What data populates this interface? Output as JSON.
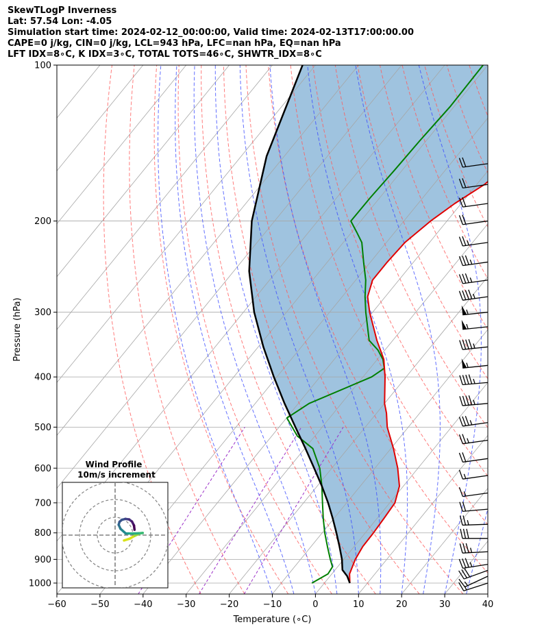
{
  "header": {
    "line1": "SkewTLogP Inverness",
    "line2": "Lat: 57.54   Lon: -4.05",
    "line3": "Simulation start time: 2024-02-12_00:00:00, Valid time: 2024-02-13T17:00:00.00",
    "line4": "CAPE=0 j/kg, CIN=0 j/kg, LCL=943 hPa, LFC=nan hPa, EQ=nan hPa",
    "line5": "LFT IDX=8∘C, K IDX=3∘C, TOTAL TOTS=46∘C, SHWTR_IDX=8∘C"
  },
  "colors": {
    "temperature": "#e00000",
    "dewpoint": "#007f00",
    "parcel": "#000000",
    "shade": "#9fc3df",
    "dry_adiabat": "#ff5a5a",
    "moist_adiabat": "#3b4bff",
    "mixing_ratio": "#9b30c8",
    "isotherm": "#a6a6a6"
  },
  "chart_data": {
    "type": "skewt",
    "title": "SkewTLogP Inverness",
    "xlabel": "Temperature (∘C)",
    "ylabel": "Pressure (hPa)",
    "xlim": [
      -60,
      40
    ],
    "ylim": [
      1050,
      100
    ],
    "x_ticks": [
      "−60",
      "−50",
      "−40",
      "−30",
      "−20",
      "−10",
      "0",
      "10",
      "20",
      "30",
      "40"
    ],
    "x_tick_values": [
      -60,
      -50,
      -40,
      -30,
      -20,
      -10,
      0,
      10,
      20,
      30,
      40
    ],
    "y_ticks": [
      "100",
      "200",
      "300",
      "400",
      "500",
      "600",
      "700",
      "800",
      "900",
      "1000"
    ],
    "y_tick_values": [
      100,
      200,
      300,
      400,
      500,
      600,
      700,
      800,
      900,
      1000
    ],
    "temperature": {
      "name": "Temperature",
      "points": [
        [
          1000,
          5.9
        ],
        [
          960,
          4.1
        ],
        [
          900,
          2.7
        ],
        [
          850,
          2.0
        ],
        [
          800,
          1.9
        ],
        [
          750,
          1.6
        ],
        [
          700,
          1.2
        ],
        [
          650,
          -0.9
        ],
        [
          600,
          -4.7
        ],
        [
          550,
          -9.4
        ],
        [
          500,
          -14.9
        ],
        [
          470,
          -17.7
        ],
        [
          450,
          -20.0
        ],
        [
          400,
          -24.9
        ],
        [
          370,
          -28.5
        ],
        [
          340,
          -33.7
        ],
        [
          300,
          -40.7
        ],
        [
          280,
          -44.1
        ],
        [
          260,
          -46.1
        ],
        [
          240,
          -46.1
        ],
        [
          220,
          -45.7
        ],
        [
          200,
          -43.8
        ],
        [
          185,
          -41.5
        ],
        [
          170,
          -38.2
        ],
        [
          150,
          -35.9
        ],
        [
          130,
          -35.7
        ],
        [
          115,
          -33.9
        ],
        [
          100,
          -32.0
        ]
      ]
    },
    "dewpoint": {
      "name": "Dewpoint",
      "points": [
        [
          1000,
          -2.9
        ],
        [
          960,
          -0.9
        ],
        [
          930,
          -1.2
        ],
        [
          900,
          -3.1
        ],
        [
          850,
          -6.2
        ],
        [
          800,
          -9.4
        ],
        [
          750,
          -12.5
        ],
        [
          700,
          -15.6
        ],
        [
          650,
          -18.9
        ],
        [
          600,
          -22.8
        ],
        [
          550,
          -28.1
        ],
        [
          520,
          -34.1
        ],
        [
          480,
          -39.9
        ],
        [
          450,
          -37.5
        ],
        [
          400,
          -28.0
        ],
        [
          385,
          -26.7
        ],
        [
          370,
          -28.7
        ],
        [
          355,
          -31.6
        ],
        [
          340,
          -35.5
        ],
        [
          300,
          -41.6
        ],
        [
          280,
          -44.7
        ],
        [
          260,
          -47.7
        ],
        [
          240,
          -51.6
        ],
        [
          220,
          -55.7
        ],
        [
          210,
          -58.9
        ],
        [
          200,
          -62.3
        ],
        [
          180,
          -62.2
        ],
        [
          160,
          -61.8
        ],
        [
          140,
          -61.5
        ],
        [
          120,
          -60.9
        ],
        [
          100,
          -61.1
        ]
      ]
    },
    "parcel": {
      "name": "Parcel profile",
      "points": [
        [
          1000,
          5.9
        ],
        [
          970,
          4.0
        ],
        [
          943,
          1.7
        ],
        [
          900,
          -0.4
        ],
        [
          850,
          -3.4
        ],
        [
          800,
          -6.7
        ],
        [
          750,
          -10.3
        ],
        [
          700,
          -14.3
        ],
        [
          650,
          -18.9
        ],
        [
          600,
          -24.1
        ],
        [
          550,
          -29.8
        ],
        [
          500,
          -36.2
        ],
        [
          450,
          -43.2
        ],
        [
          400,
          -50.7
        ],
        [
          350,
          -58.8
        ],
        [
          300,
          -67.5
        ],
        [
          250,
          -76.4
        ],
        [
          200,
          -85.3
        ],
        [
          150,
          -94.1
        ],
        [
          100,
          -103.0
        ]
      ]
    },
    "wind_barbs": [
      {
        "p": 1000,
        "dir": 252,
        "kt": 18
      },
      {
        "p": 970,
        "dir": 245,
        "kt": 19
      },
      {
        "p": 945,
        "dir": 250,
        "kt": 30
      },
      {
        "p": 920,
        "dir": 261,
        "kt": 36
      },
      {
        "p": 870,
        "dir": 267,
        "kt": 35
      },
      {
        "p": 820,
        "dir": 270,
        "kt": 30
      },
      {
        "p": 770,
        "dir": 268,
        "kt": 25
      },
      {
        "p": 720,
        "dir": 265,
        "kt": 20
      },
      {
        "p": 670,
        "dir": 262,
        "kt": 15
      },
      {
        "p": 620,
        "dir": 262,
        "kt": 15
      },
      {
        "p": 575,
        "dir": 262,
        "kt": 20
      },
      {
        "p": 530,
        "dir": 262,
        "kt": 25
      },
      {
        "p": 490,
        "dir": 262,
        "kt": 35
      },
      {
        "p": 450,
        "dir": 265,
        "kt": 45
      },
      {
        "p": 410,
        "dir": 265,
        "kt": 45
      },
      {
        "p": 380,
        "dir": 264,
        "kt": 55
      },
      {
        "p": 350,
        "dir": 264,
        "kt": 45
      },
      {
        "p": 320,
        "dir": 264,
        "kt": 55
      },
      {
        "p": 300,
        "dir": 264,
        "kt": 55
      },
      {
        "p": 280,
        "dir": 262,
        "kt": 45
      },
      {
        "p": 260,
        "dir": 262,
        "kt": 35
      },
      {
        "p": 240,
        "dir": 262,
        "kt": 35
      },
      {
        "p": 220,
        "dir": 262,
        "kt": 25
      },
      {
        "p": 200,
        "dir": 262,
        "kt": 20
      },
      {
        "p": 185,
        "dir": 262,
        "kt": 20
      },
      {
        "p": 170,
        "dir": 262,
        "kt": 20
      },
      {
        "p": 155,
        "dir": 262,
        "kt": 20
      }
    ],
    "hodograph": {
      "title": "Wind Profile",
      "subtitle": "10m/s increment",
      "rings_ms": [
        10,
        20,
        30
      ],
      "points_ms": [
        [
          5.0,
          -3.0
        ],
        [
          8.2,
          -2.0
        ],
        [
          11.0,
          -0.4
        ],
        [
          14.0,
          1.0
        ],
        [
          15.5,
          1.2
        ],
        [
          13.0,
          1.0
        ],
        [
          10.0,
          0.9
        ],
        [
          7.5,
          0.9
        ],
        [
          6.0,
          0.9
        ],
        [
          3.0,
          3.6
        ],
        [
          2.0,
          5.8
        ],
        [
          2.5,
          7.5
        ],
        [
          3.8,
          8.6
        ],
        [
          5.8,
          9.1
        ],
        [
          7.9,
          8.8
        ],
        [
          9.5,
          7.6
        ],
        [
          10.6,
          5.4
        ],
        [
          10.9,
          3.0
        ]
      ]
    }
  }
}
